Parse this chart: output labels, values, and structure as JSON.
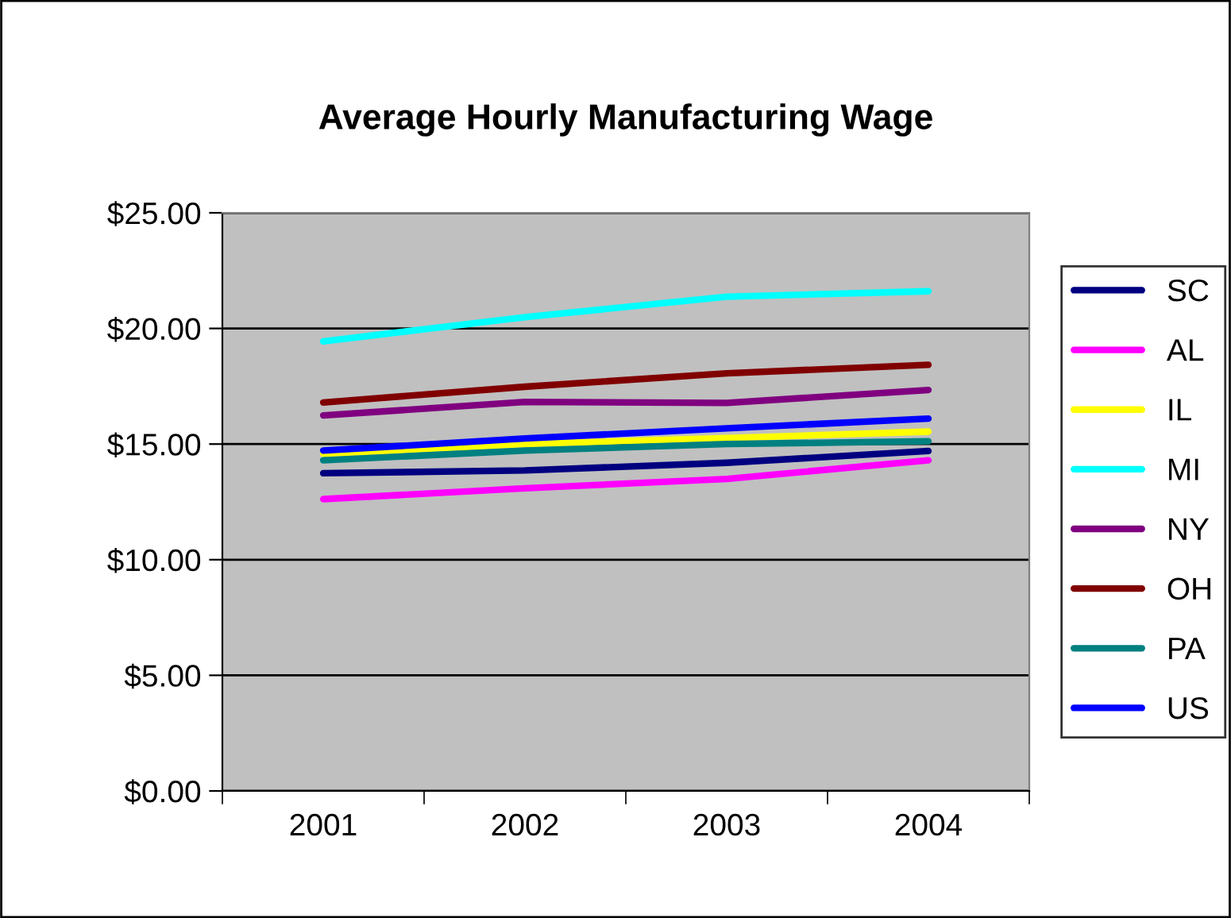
{
  "chart_data": {
    "type": "line",
    "title": "Average Hourly Manufacturing Wage",
    "categories": [
      "2001",
      "2002",
      "2003",
      "2004"
    ],
    "series": [
      {
        "name": "SC",
        "color": "#000080",
        "values": [
          13.74,
          13.86,
          14.19,
          14.7
        ]
      },
      {
        "name": "AL",
        "color": "#ff00ff",
        "values": [
          12.62,
          13.09,
          13.49,
          14.3
        ]
      },
      {
        "name": "IL",
        "color": "#ffff00",
        "values": [
          14.58,
          15.0,
          15.26,
          15.54
        ]
      },
      {
        "name": "MI",
        "color": "#00ffff",
        "values": [
          19.44,
          20.49,
          21.37,
          21.61
        ]
      },
      {
        "name": "NY",
        "color": "#800080",
        "values": [
          16.24,
          16.82,
          16.78,
          17.34
        ]
      },
      {
        "name": "OH",
        "color": "#800000",
        "values": [
          16.8,
          17.48,
          18.06,
          18.43
        ]
      },
      {
        "name": "PA",
        "color": "#008080",
        "values": [
          14.3,
          14.72,
          15.0,
          15.12
        ]
      },
      {
        "name": "US",
        "color": "#0000ff",
        "values": [
          14.72,
          15.24,
          15.68,
          16.1
        ]
      }
    ],
    "ylim": [
      0,
      25
    ],
    "yticks": [
      {
        "value": 0,
        "label": "$0.00"
      },
      {
        "value": 5,
        "label": "$5.00"
      },
      {
        "value": 10,
        "label": "$10.00"
      },
      {
        "value": 15,
        "label": "$15.00"
      },
      {
        "value": 20,
        "label": "$20.00"
      },
      {
        "value": 25,
        "label": "$25.00"
      }
    ],
    "grid": "y",
    "legend": "right",
    "marker": "none",
    "line_style": "solid"
  }
}
